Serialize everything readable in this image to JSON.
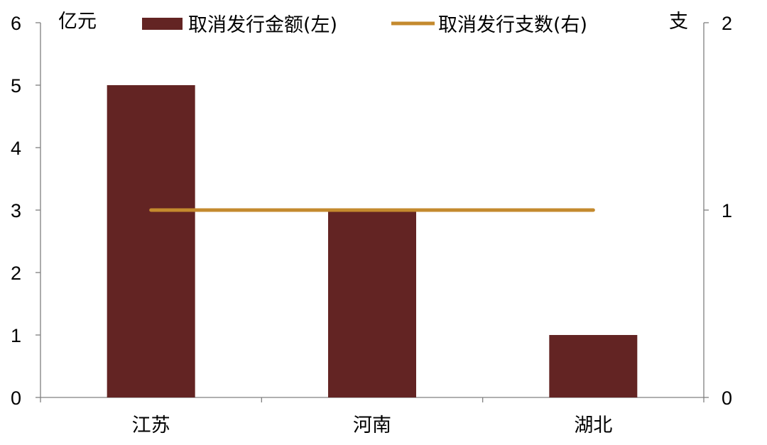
{
  "chart_data": {
    "type": "bar",
    "categories": [
      "江苏",
      "河南",
      "湖北"
    ],
    "series": [
      {
        "name": "取消发行金额(左)",
        "type": "bar",
        "axis": "left",
        "values": [
          5,
          3,
          1
        ],
        "color": "#632423"
      },
      {
        "name": "取消发行支数(右)",
        "type": "line",
        "axis": "right",
        "values": [
          1,
          1,
          1
        ],
        "color": "#C48A2E"
      }
    ],
    "y_left": {
      "unit": "亿元",
      "min": 0,
      "max": 6,
      "ticks": [
        0,
        1,
        2,
        3,
        4,
        5,
        6
      ]
    },
    "y_right": {
      "unit": "支",
      "min": 0,
      "max": 2,
      "ticks": [
        0,
        1,
        2
      ]
    },
    "legend_position": "top",
    "grid": false
  }
}
